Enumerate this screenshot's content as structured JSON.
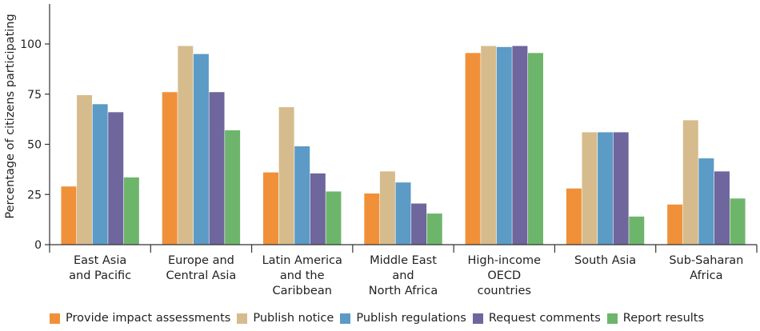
{
  "chart_data": {
    "type": "bar",
    "ylabel": "Percentage of citizens participating",
    "xlabel": "",
    "ylim": [
      0,
      100
    ],
    "yticks": [
      0,
      25,
      50,
      75,
      100
    ],
    "grid": false,
    "legend_position": "bottom",
    "categories": [
      [
        "East Asia",
        "and Pacific"
      ],
      [
        "Europe and",
        "Central Asia"
      ],
      [
        "Latin America",
        "and the",
        "Caribbean"
      ],
      [
        "Middle East",
        "and",
        "North Africa"
      ],
      [
        "High-income",
        "OECD",
        "countries"
      ],
      [
        "South Asia"
      ],
      [
        "Sub-Saharan",
        "Africa"
      ]
    ],
    "series": [
      {
        "name": "Provide impact assessments",
        "color": "#f0913a",
        "values": [
          29,
          76,
          36,
          25.5,
          95.5,
          28,
          20
        ]
      },
      {
        "name": "Publish notice",
        "color": "#d6bc8d",
        "values": [
          74.5,
          99,
          68.5,
          36.5,
          99,
          56,
          62
        ]
      },
      {
        "name": "Publish regulations",
        "color": "#5b9bc6",
        "values": [
          70,
          95,
          49,
          31,
          98.5,
          56,
          43
        ]
      },
      {
        "name": "Request comments",
        "color": "#6e669c",
        "values": [
          66,
          76,
          35.5,
          20.5,
          99,
          56,
          36.5
        ]
      },
      {
        "name": "Report results",
        "color": "#6db56b",
        "values": [
          33.5,
          57,
          26.5,
          15.5,
          95.5,
          14,
          23
        ]
      }
    ]
  }
}
